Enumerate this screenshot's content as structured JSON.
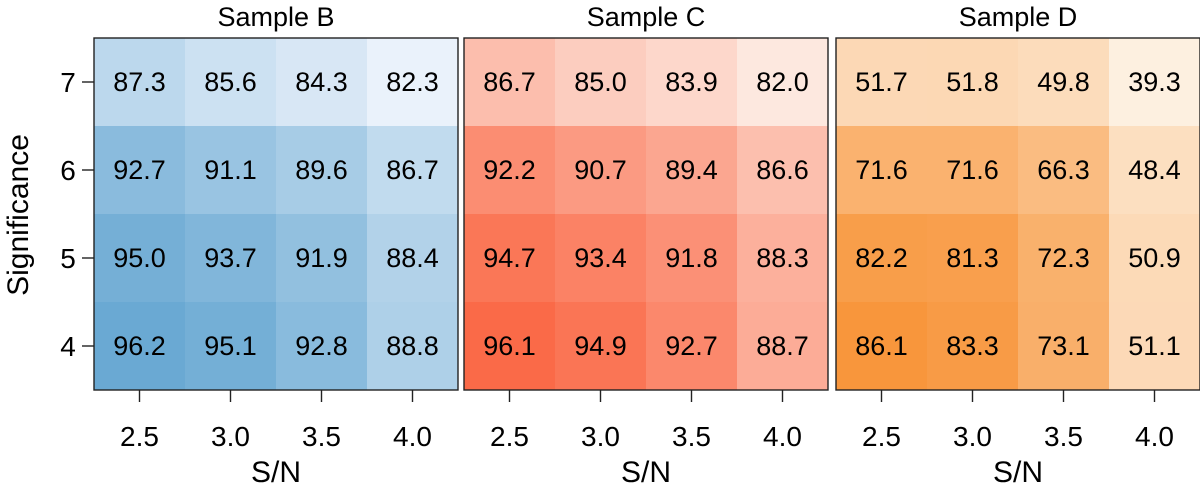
{
  "chart_data": [
    {
      "type": "heatmap",
      "title": "Sample B",
      "xlabel": "S/N",
      "ylabel": "Significance",
      "x_ticks": [
        "2.5",
        "3.0",
        "3.5",
        "4.0"
      ],
      "y_ticks": [
        "7",
        "6",
        "5",
        "4"
      ],
      "rows": [
        [
          "87.3",
          "85.6",
          "84.3",
          "82.3"
        ],
        [
          "92.7",
          "91.1",
          "89.6",
          "86.7"
        ],
        [
          "95.0",
          "93.7",
          "91.9",
          "88.4"
        ],
        [
          "96.2",
          "95.1",
          "92.8",
          "88.8"
        ]
      ],
      "color_low": "#eaf2fb",
      "color_high": "#6aa9d3"
    },
    {
      "type": "heatmap",
      "title": "Sample C",
      "xlabel": "S/N",
      "ylabel": "",
      "x_ticks": [
        "2.5",
        "3.0",
        "3.5",
        "4.0"
      ],
      "y_ticks": [
        "7",
        "6",
        "5",
        "4"
      ],
      "rows": [
        [
          "86.7",
          "85.0",
          "83.9",
          "82.0"
        ],
        [
          "92.2",
          "90.7",
          "89.4",
          "86.6"
        ],
        [
          "94.7",
          "93.4",
          "91.8",
          "88.3"
        ],
        [
          "96.1",
          "94.9",
          "92.7",
          "88.7"
        ]
      ],
      "color_low": "#fde8df",
      "color_high": "#fa6a48"
    },
    {
      "type": "heatmap",
      "title": "Sample D",
      "xlabel": "S/N",
      "ylabel": "",
      "x_ticks": [
        "2.5",
        "3.0",
        "3.5",
        "4.0"
      ],
      "y_ticks": [
        "7",
        "6",
        "5",
        "4"
      ],
      "rows": [
        [
          "51.7",
          "51.8",
          "49.8",
          "39.3"
        ],
        [
          "71.6",
          "71.6",
          "66.3",
          "48.4"
        ],
        [
          "82.2",
          "81.3",
          "72.3",
          "50.9"
        ],
        [
          "86.1",
          "83.3",
          "73.1",
          "51.1"
        ]
      ],
      "color_low": "#fdf0e0",
      "color_high": "#f8963c"
    }
  ]
}
